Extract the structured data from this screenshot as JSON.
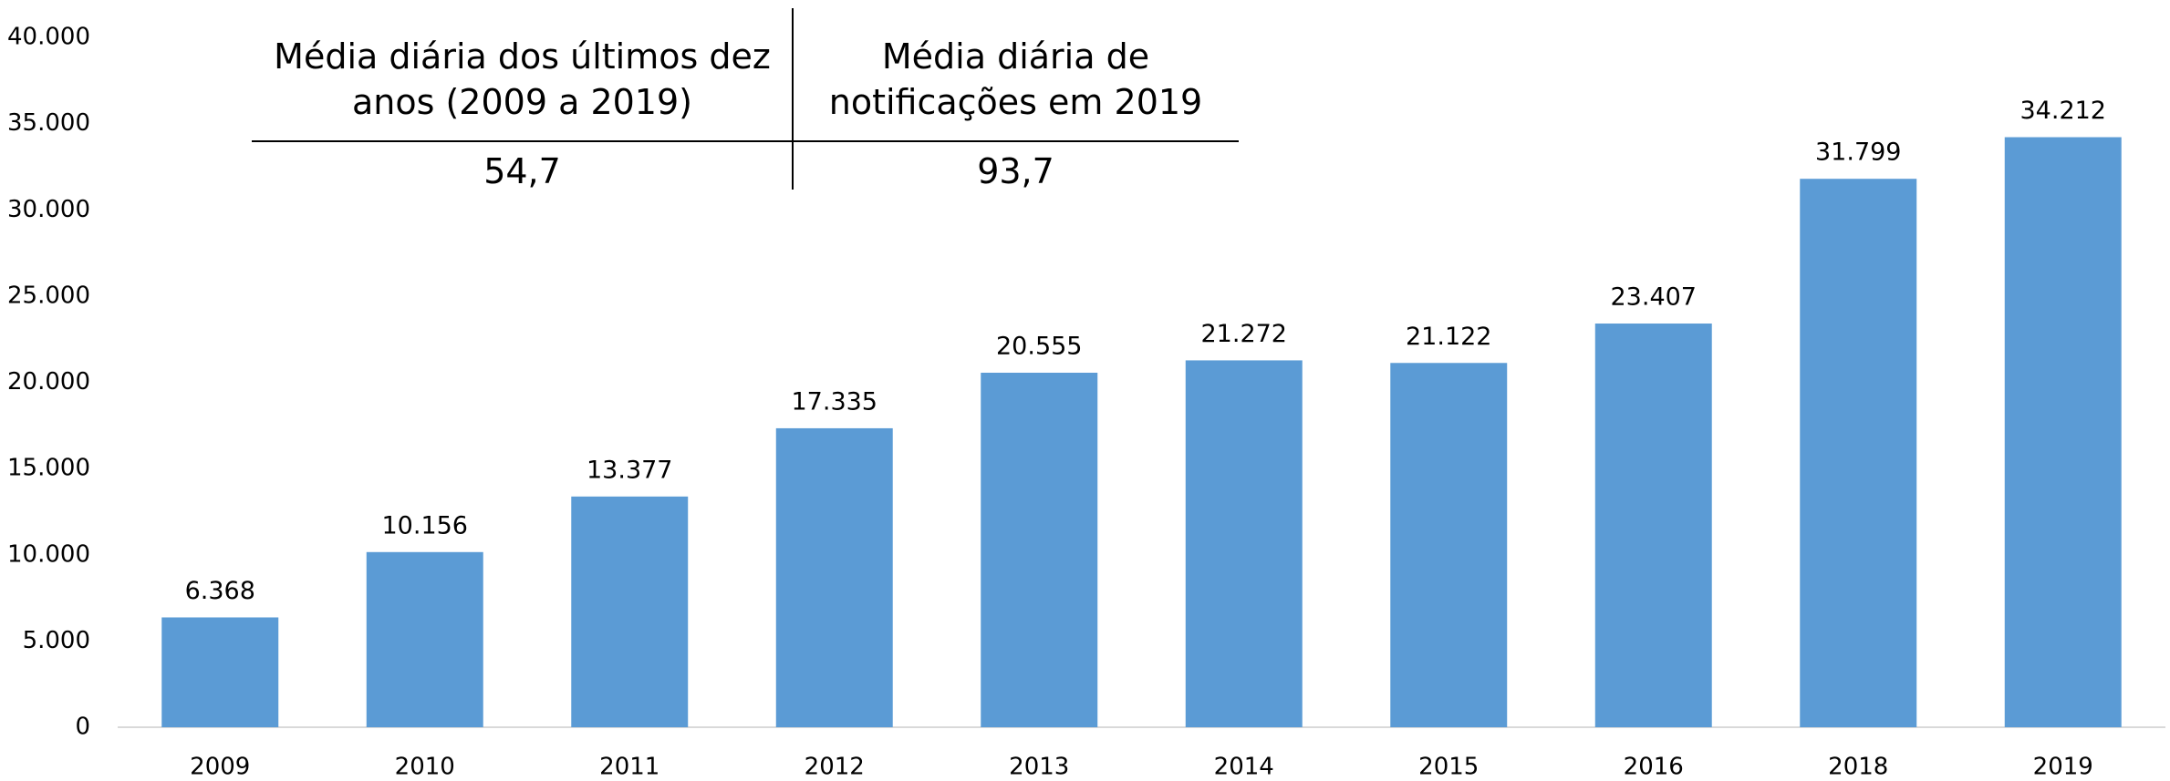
{
  "chart_data": {
    "type": "bar",
    "categories": [
      "2009",
      "2010",
      "2011",
      "2012",
      "2013",
      "2014",
      "2015",
      "2016",
      "2018",
      "2019"
    ],
    "values": [
      6368,
      10156,
      13377,
      17335,
      20555,
      21272,
      21122,
      23407,
      31799,
      34212
    ],
    "value_labels": [
      "6.368",
      "10.156",
      "13.377",
      "17.335",
      "20.555",
      "21.272",
      "21.122",
      "23.407",
      "31.799",
      "34.212"
    ],
    "color": "#5b9bd5",
    "ylim": [
      0,
      40000
    ],
    "yticks": [
      0,
      {
        "value": 5000,
        "label": "5.000"
      },
      {
        "value": 10000,
        "label": "10.000"
      },
      {
        "value": 15000,
        "label": "15.000"
      },
      {
        "value": 20000,
        "label": "20.000"
      },
      {
        "value": 25000,
        "label": "25.000"
      },
      {
        "value": 30000,
        "label": "30.000"
      },
      {
        "value": 35000,
        "label": "35.000"
      },
      {
        "value": 40000,
        "label": "40.000"
      }
    ],
    "grid": false
  },
  "table": {
    "headers": [
      "Média diária dos últimos dez anos (2009 a 2019)",
      "Média diária de notificações em 2019"
    ],
    "rows": [
      [
        "54,7",
        "93,7"
      ]
    ]
  }
}
